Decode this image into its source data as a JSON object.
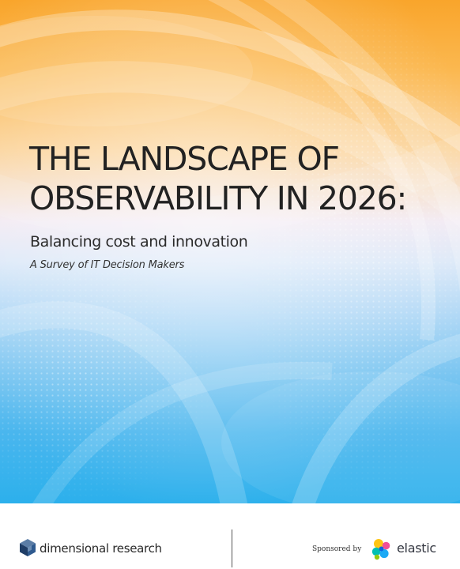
{
  "cover": {
    "title_line1": "THE LANDSCAPE OF",
    "title_line2": "OBSERVABILITY IN 2026:",
    "subtitle": "Balancing cost and innovation",
    "tagline": "A Survey of IT Decision Makers"
  },
  "footer": {
    "publisher": "dimensional research",
    "sponsored_label": "Sponsored by",
    "sponsor": "elastic",
    "publisher_logo_icon": "cube-icon",
    "sponsor_logo_icon": "elastic-cluster-icon"
  },
  "colors": {
    "gradient_top": "#f9a52b",
    "gradient_middle": "#f2eaf3",
    "gradient_bottom": "#2cb0ec",
    "title_text": "#222222"
  }
}
